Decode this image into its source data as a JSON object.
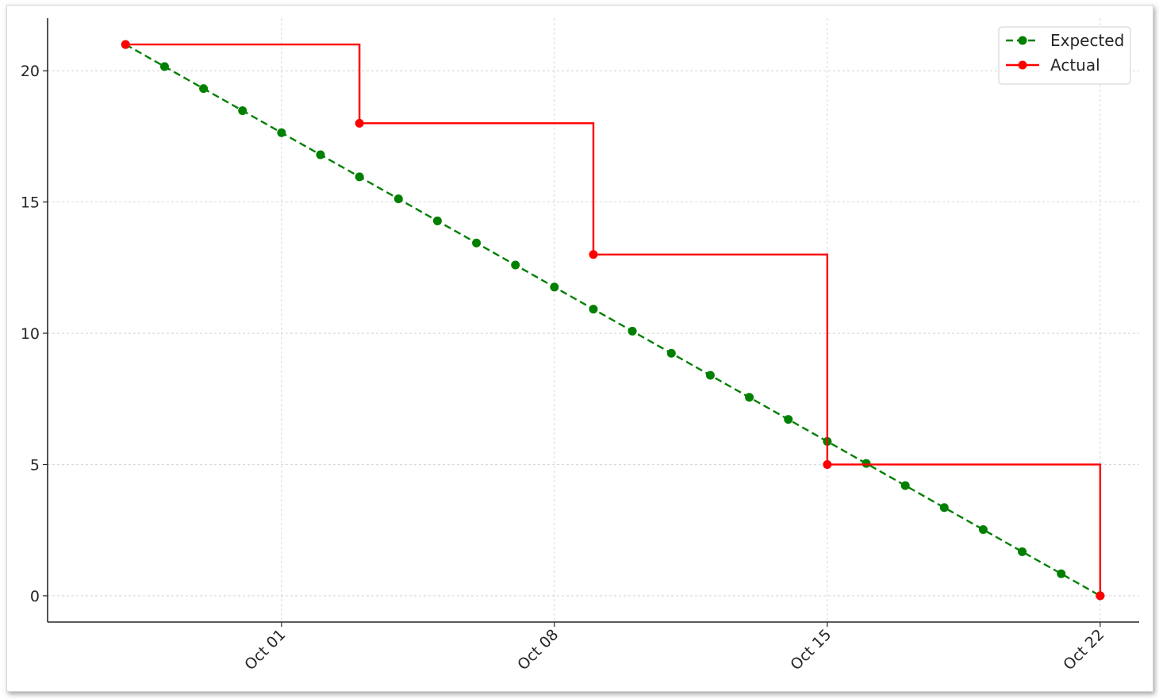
{
  "chart_data": {
    "type": "line",
    "title": "",
    "xlabel": "",
    "ylabel": "",
    "x_ticks": [
      "Oct 01",
      "Oct 08",
      "Oct 15",
      "Oct 22"
    ],
    "y_ticks": [
      "0",
      "5",
      "10",
      "15",
      "20"
    ],
    "ylim": [
      -1,
      22
    ],
    "xlim": [
      "2023-09-25",
      "2023-10-23"
    ],
    "grid": true,
    "legend_position": "top-right",
    "series": [
      {
        "name": "Expected",
        "style": "dashed-with-markers",
        "color": "#008000",
        "x": [
          "2023-09-27",
          "2023-09-28",
          "2023-09-29",
          "2023-09-30",
          "2023-10-01",
          "2023-10-02",
          "2023-10-03",
          "2023-10-04",
          "2023-10-05",
          "2023-10-06",
          "2023-10-07",
          "2023-10-08",
          "2023-10-09",
          "2023-10-10",
          "2023-10-11",
          "2023-10-12",
          "2023-10-13",
          "2023-10-14",
          "2023-10-15",
          "2023-10-16",
          "2023-10-17",
          "2023-10-18",
          "2023-10-19",
          "2023-10-20",
          "2023-10-21",
          "2023-10-22"
        ],
        "y": [
          21,
          20.16,
          19.32,
          18.48,
          17.64,
          16.8,
          15.96,
          15.12,
          14.28,
          13.44,
          12.6,
          11.76,
          10.92,
          10.08,
          9.24,
          8.4,
          7.56,
          6.72,
          5.88,
          5.04,
          4.2,
          3.36,
          2.52,
          1.68,
          0.84,
          0
        ]
      },
      {
        "name": "Actual",
        "style": "step-post-with-markers",
        "color": "#ff0000",
        "x": [
          "2023-09-27",
          "2023-10-03",
          "2023-10-09",
          "2023-10-15",
          "2023-10-22"
        ],
        "y": [
          21,
          18,
          13,
          5,
          0
        ]
      }
    ]
  }
}
